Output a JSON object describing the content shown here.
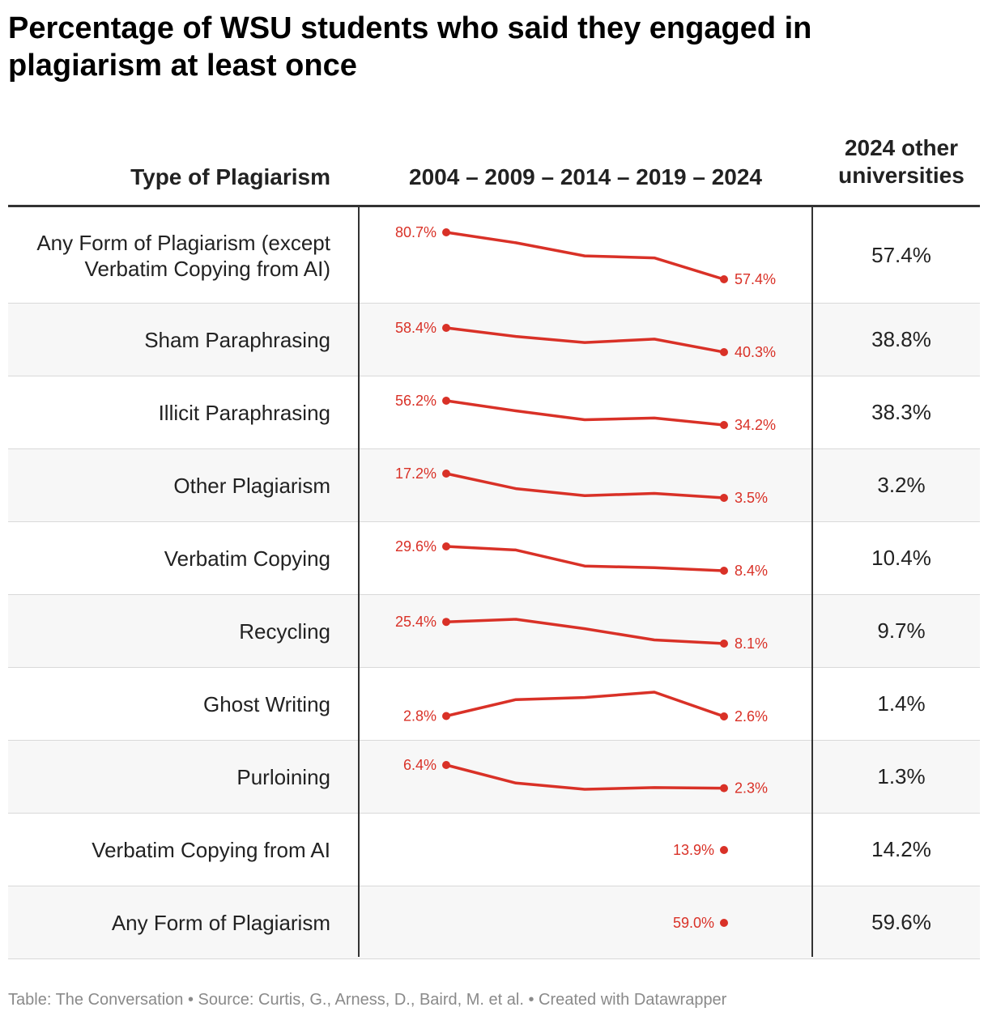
{
  "title": "Percentage of WSU students who said they engaged in plagiarism at least once",
  "headers": {
    "type": "Type of Plagiarism",
    "years": "2004 – 2009 – 2014 – 2019 – 2024",
    "other": "2024 other universities"
  },
  "footer": "Table: The Conversation • Source: Curtis, G., Arness, D., Baird, M. et al. • Created with Datawrapper",
  "colors": {
    "line": "#d93127",
    "text": "#222222",
    "alt_row": "#f7f7f7"
  },
  "chart_data": {
    "type": "table",
    "x": [
      2004,
      2009,
      2014,
      2019,
      2024
    ],
    "rows": [
      {
        "label": "Any Form of Plagiarism (except Verbatim Copying from AI)",
        "values": [
          80.7,
          75.5,
          69.0,
          68.0,
          57.4
        ],
        "first_label": "80.7%",
        "last_label": "57.4%",
        "other": "57.4%"
      },
      {
        "label": "Sham Paraphrasing",
        "values": [
          58.4,
          52.0,
          47.5,
          50.0,
          40.3
        ],
        "first_label": "58.4%",
        "last_label": "40.3%",
        "other": "38.8%"
      },
      {
        "label": "Illicit Paraphrasing",
        "values": [
          56.2,
          47.0,
          39.0,
          40.5,
          34.2
        ],
        "first_label": "56.2%",
        "last_label": "34.2%",
        "other": "38.3%"
      },
      {
        "label": "Other Plagiarism",
        "values": [
          17.2,
          8.7,
          4.8,
          6.0,
          3.5
        ],
        "first_label": "17.2%",
        "last_label": "3.5%",
        "other": "3.2%"
      },
      {
        "label": "Verbatim Copying",
        "values": [
          29.6,
          26.5,
          12.5,
          11.0,
          8.4
        ],
        "first_label": "29.6%",
        "last_label": "8.4%",
        "other": "10.4%"
      },
      {
        "label": "Recycling",
        "values": [
          25.4,
          27.5,
          20.0,
          11.0,
          8.1
        ],
        "first_label": "25.4%",
        "last_label": "8.1%",
        "other": "9.7%"
      },
      {
        "label": "Ghost Writing",
        "values": [
          2.8,
          10.5,
          11.5,
          14.0,
          2.6
        ],
        "first_label": "2.8%",
        "last_label": "2.6%",
        "other": "1.4%"
      },
      {
        "label": "Purloining",
        "values": [
          6.4,
          3.2,
          2.1,
          2.4,
          2.3
        ],
        "first_label": "6.4%",
        "last_label": "2.3%",
        "other": "1.3%"
      },
      {
        "label": "Verbatim Copying from AI",
        "values": [
          null,
          null,
          null,
          null,
          13.9
        ],
        "first_label": "",
        "last_label": "13.9%",
        "other": "14.2%"
      },
      {
        "label": "Any Form of Plagiarism",
        "values": [
          null,
          null,
          null,
          null,
          59.0
        ],
        "first_label": "",
        "last_label": "59.0%",
        "other": "59.6%"
      }
    ]
  }
}
